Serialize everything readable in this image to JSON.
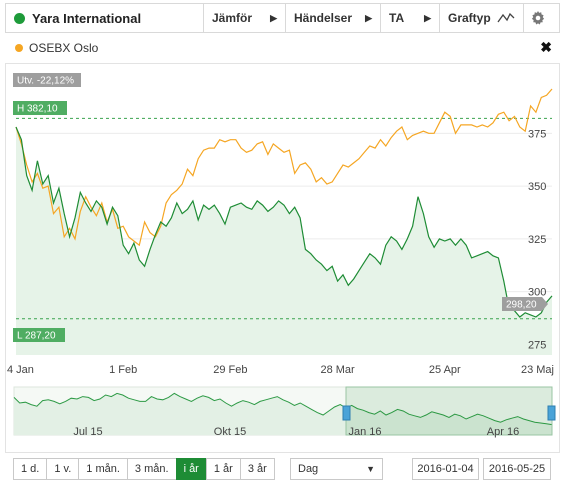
{
  "toolbar": {
    "instrument": "Yara International",
    "instrument_color": "#1e9b3a",
    "compare_label": "Jämför",
    "events_label": "Händelser",
    "ta_label": "TA",
    "graph_type_label": "Graftyp"
  },
  "compare": {
    "name": "OSEBX Oslo",
    "color": "#f5a623"
  },
  "chart_data": {
    "type": "line",
    "x_labels": [
      "4 Jan",
      "1 Feb",
      "29 Feb",
      "28 Mar",
      "25 Apr",
      "23 Maj"
    ],
    "y_ticks": [
      275,
      300,
      325,
      350,
      375
    ],
    "ylim": [
      270,
      405
    ],
    "change_label": "Utv. -22,12%",
    "high_label": "H 382,10",
    "low_label": "L 287,20",
    "last_label": "298,20",
    "high": 382.1,
    "low": 287.2,
    "last": 298.2,
    "series": [
      {
        "color": "#1e8c35",
        "values": [
          378,
          372,
          355,
          348,
          362,
          351,
          355,
          342,
          349,
          337,
          326,
          335,
          347,
          342,
          338,
          343,
          340,
          332,
          340,
          336,
          322,
          318,
          323,
          315,
          312,
          320,
          327,
          333,
          331,
          335,
          342,
          337,
          339,
          343,
          334,
          341,
          339,
          341,
          337,
          332,
          340,
          341,
          342,
          340,
          339,
          343,
          341,
          338,
          340,
          343,
          341,
          337,
          340,
          335,
          320,
          318,
          315,
          313,
          310,
          312,
          305,
          308,
          303,
          306,
          310,
          314,
          318,
          316,
          313,
          322,
          326,
          324,
          320,
          325,
          331,
          345,
          337,
          326,
          321,
          325,
          324,
          325,
          322,
          325,
          322,
          316,
          317,
          318,
          319,
          317,
          316,
          305,
          292,
          291,
          288,
          290,
          289,
          288,
          290,
          295,
          298
        ]
      },
      {
        "color": "#f5a623",
        "values": [
          378,
          370,
          360,
          352,
          356,
          349,
          350,
          337,
          340,
          326,
          330,
          325,
          338,
          345,
          340,
          336,
          342,
          333,
          339,
          330,
          331,
          326,
          324,
          322,
          333,
          328,
          326,
          331,
          342,
          346,
          348,
          351,
          358,
          355,
          363,
          367,
          368,
          368,
          372,
          371,
          372,
          372,
          368,
          366,
          367,
          370,
          371,
          365,
          370,
          368,
          366,
          367,
          356,
          360,
          361,
          358,
          352,
          354,
          351,
          352,
          356,
          360,
          359,
          361,
          363,
          366,
          369,
          368,
          372,
          369,
          373,
          376,
          378,
          372,
          374,
          375,
          376,
          375,
          375,
          380,
          385,
          383,
          375,
          379,
          379,
          379,
          378,
          379,
          378,
          380,
          384,
          385,
          381,
          383,
          378,
          376,
          388,
          385,
          392,
          393,
          396
        ]
      }
    ]
  },
  "navigator": {
    "labels": [
      "Jul 15",
      "Okt 15",
      "Jan 16",
      "Apr 16"
    ],
    "values": [
      367,
      360,
      361,
      358,
      356,
      363,
      364,
      362,
      359,
      362,
      366,
      365,
      368,
      367,
      363,
      365,
      370,
      368,
      372,
      370,
      366,
      364,
      362,
      362,
      368,
      365,
      364,
      367,
      372,
      368,
      365,
      362,
      366,
      369,
      367,
      363,
      365,
      360,
      356,
      360,
      363,
      361,
      358,
      362,
      364,
      366,
      368,
      364,
      361,
      357,
      360,
      356,
      352,
      348,
      345,
      350,
      355,
      358,
      354,
      357,
      353,
      351,
      348,
      346,
      350,
      345,
      348,
      352,
      350,
      346,
      344,
      342,
      345,
      349,
      347,
      345,
      342,
      346,
      344,
      340,
      343,
      346,
      344,
      341,
      338,
      336,
      339,
      341,
      343,
      340,
      338,
      336,
      335,
      334,
      333
    ]
  },
  "controls": {
    "periods": [
      "1 d.",
      "1 v.",
      "1 mån.",
      "3 mån.",
      "i år",
      "1 år",
      "3 år"
    ],
    "active_period": "i år",
    "interval": "Dag",
    "start_date": "2016-01-04",
    "end_date": "2016-05-25"
  }
}
